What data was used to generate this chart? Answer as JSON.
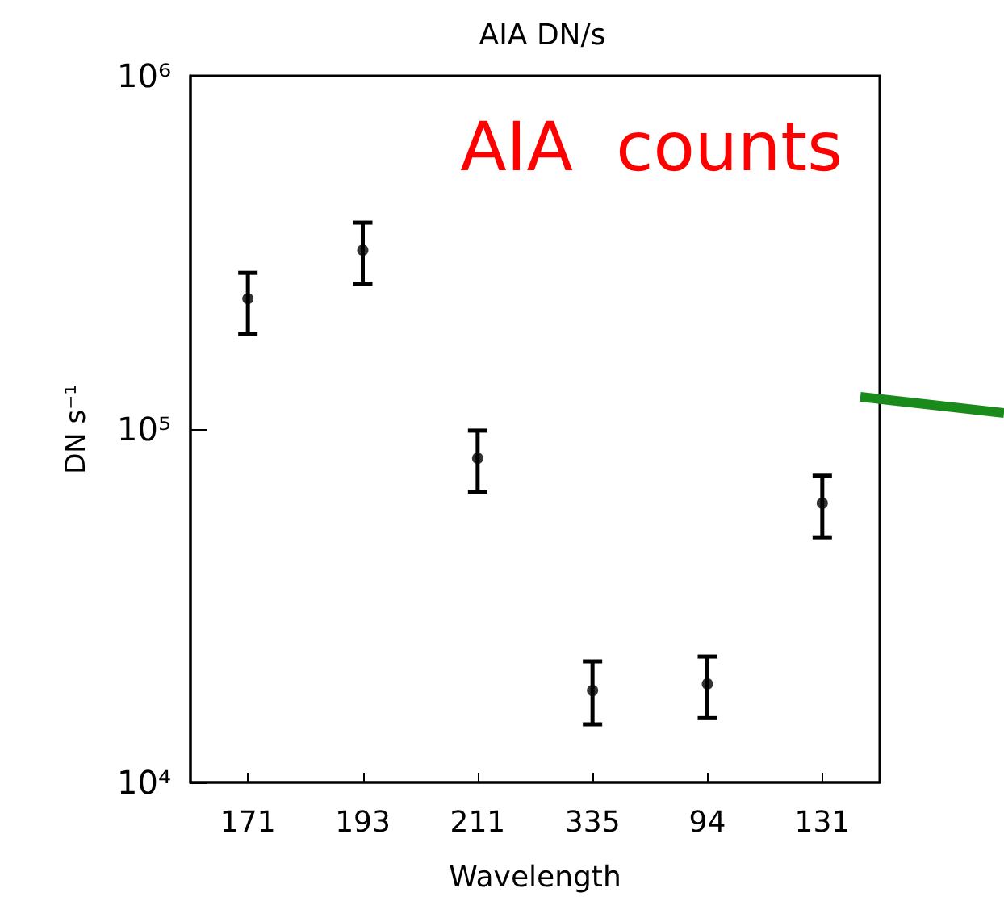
{
  "chart_data": {
    "type": "scatter",
    "title": "AIA DN/s",
    "xlabel": "Wavelength",
    "ylabel": "DN s⁻¹",
    "categories": [
      "171",
      "193",
      "211",
      "335",
      "94",
      "131"
    ],
    "series": [
      {
        "color": "#000000",
        "values": [
          234000,
          321000,
          82700,
          18200,
          19000,
          61700
        ],
        "errors": [
          [
            186000,
            277000
          ],
          [
            258000,
            384000
          ],
          [
            66400,
            99000
          ],
          [
            14600,
            22000
          ],
          [
            15200,
            22700
          ],
          [
            49400,
            73800
          ]
        ]
      }
    ],
    "ylim": [
      10000,
      1000000
    ],
    "yticks": [
      {
        "value": 10000,
        "label": "10⁴"
      },
      {
        "value": 100000,
        "label": "10⁵"
      },
      {
        "value": 1000000,
        "label": "10⁶"
      }
    ],
    "log": "y",
    "grid": false,
    "marker": "circle",
    "annotations": [
      "AIA  counts"
    ]
  }
}
